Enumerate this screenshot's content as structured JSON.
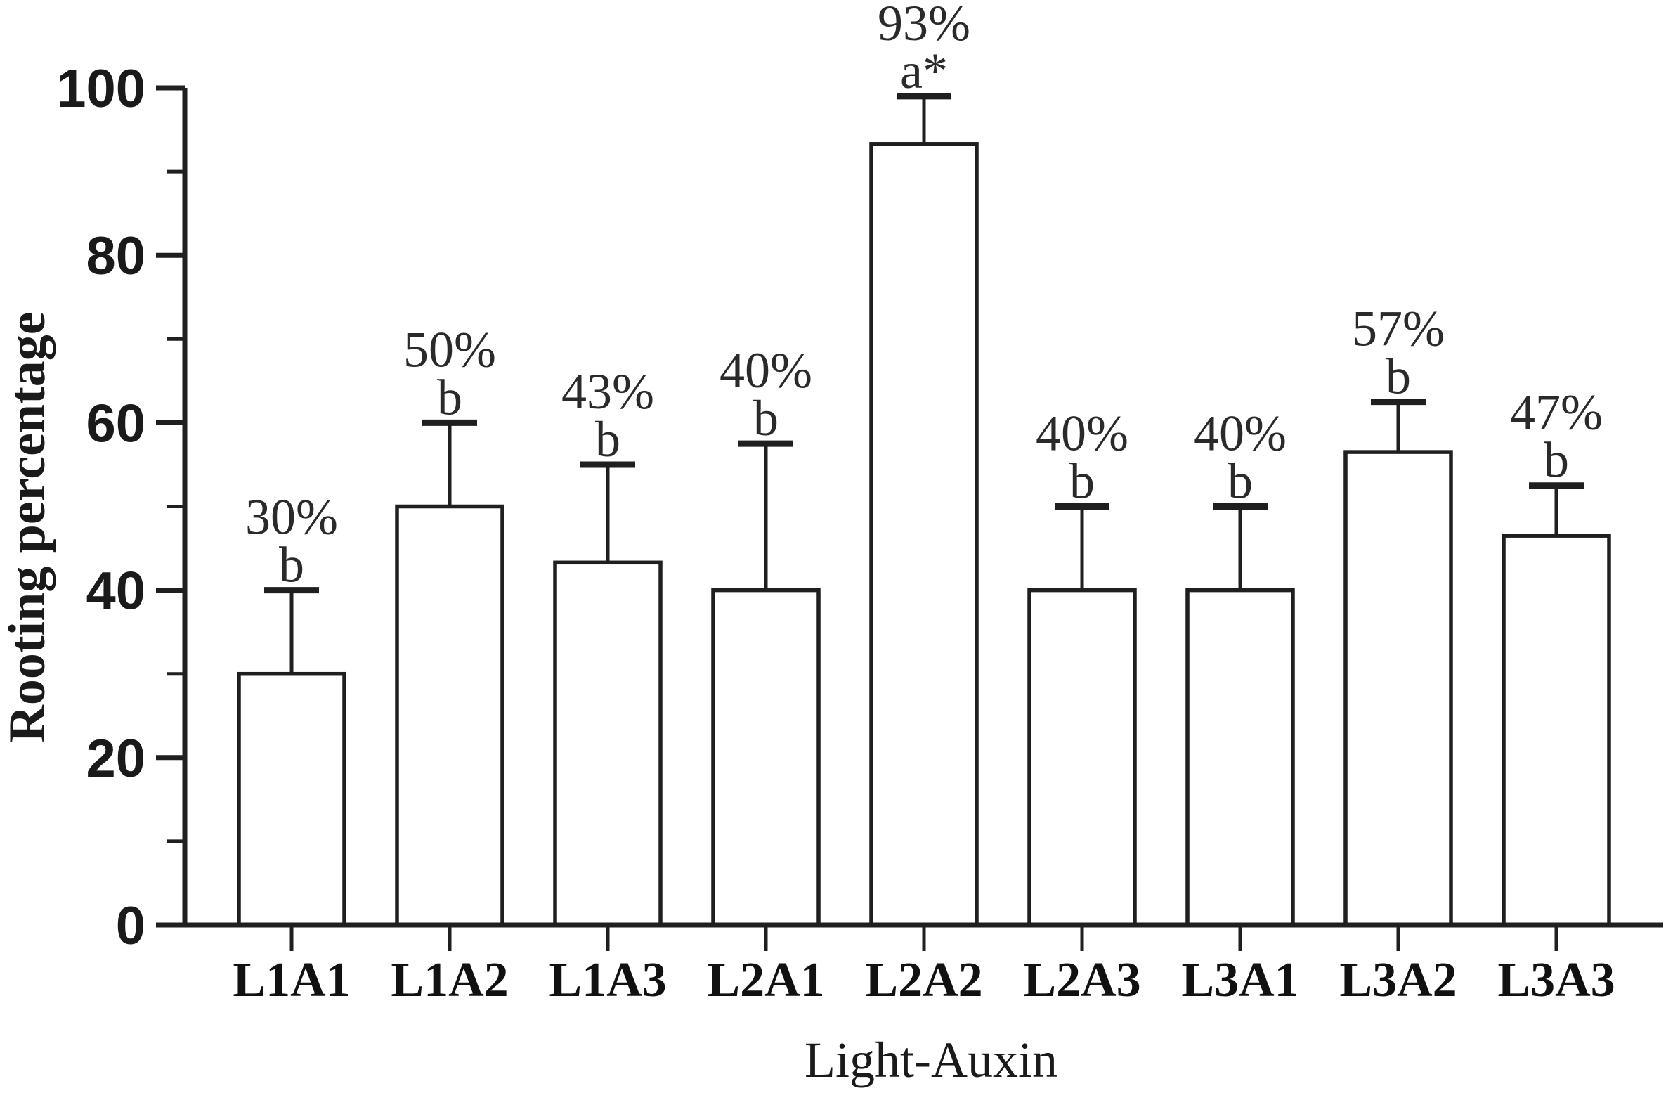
{
  "chart_data": {
    "type": "bar",
    "title": "",
    "xlabel": "Light-Auxin",
    "ylabel": "Rooting percentage",
    "categories": [
      "L1A1",
      "L1A2",
      "L1A3",
      "L2A1",
      "L2A2",
      "L2A3",
      "L3A1",
      "L3A2",
      "L3A3"
    ],
    "values": [
      30,
      50,
      43.3,
      40,
      93.3,
      40,
      40,
      56.5,
      46.5
    ],
    "bar_value_labels": [
      "30%",
      "50%",
      "43%",
      "40%",
      "93%",
      "40%",
      "40%",
      "57%",
      "47%"
    ],
    "significance_letters": [
      "b",
      "b",
      "b",
      "b",
      "a*",
      "b",
      "b",
      "b",
      "b"
    ],
    "error_bar_tops": [
      40,
      60,
      55,
      57.5,
      99,
      50,
      50,
      62.5,
      52.5
    ],
    "ylim": [
      0,
      100
    ],
    "y_major_ticks": [
      0,
      20,
      40,
      60,
      80,
      100
    ],
    "y_tick_labels": [
      "0",
      "20",
      "40",
      "60",
      "80",
      "100"
    ],
    "y_minor_ticks": [
      10,
      30,
      50,
      70,
      90
    ],
    "grid": false,
    "legend": "none",
    "bar_fill": "#ffffff",
    "line_color": "#1f1f1f",
    "text_color": "#1a1a1a"
  }
}
